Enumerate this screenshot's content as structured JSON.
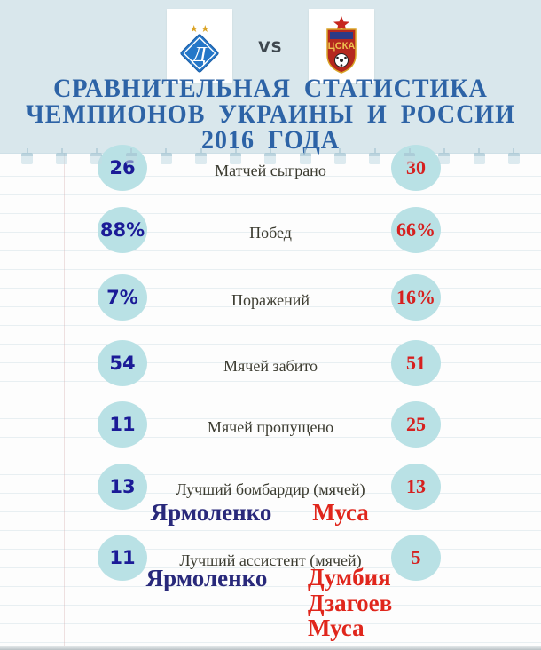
{
  "header": {
    "vs_label": "VS",
    "home_crest": {
      "icon": "dynamo-kyiv-crest-icon",
      "monogram": "Д",
      "stars": "★ ★"
    },
    "away_crest": {
      "icon": "cska-moscow-crest-icon",
      "wordmark": "ЦСКА"
    },
    "title": {
      "line1": "СРАВНИТЕЛЬНАЯ СТАТИСТИКА",
      "line2": "ЧЕМПИОНОВ УКРАИНЫ И РОССИИ",
      "line3": "2016 ГОДА"
    }
  },
  "stats": {
    "rows": [
      {
        "label": "Матчей сыграно",
        "left": "26",
        "right": "30"
      },
      {
        "label": "Побед",
        "left": "88%",
        "right": "66%"
      },
      {
        "label": "Поражений",
        "left": "7%",
        "right": "16%"
      },
      {
        "label": "Мячей забито",
        "left": "54",
        "right": "51"
      },
      {
        "label": "Мячей пропущено",
        "left": "11",
        "right": "25"
      },
      {
        "label": "Лучший бомбардир (мячей)",
        "left": "13",
        "right": "13",
        "left_names": [
          "Ярмоленко"
        ],
        "right_names": [
          "Муса"
        ]
      },
      {
        "label": "Лучший ассистент (мячей)",
        "left": "11",
        "right": "5",
        "left_names": [
          "Ярмоленко"
        ],
        "right_names": [
          "Думбия",
          "Дзагоев",
          "Муса"
        ]
      }
    ]
  },
  "chart_data": {
    "type": "table",
    "title": "Сравнительная статистика чемпионов Украины и России 2016 года",
    "categories": [
      "Матчей сыграно",
      "Побед",
      "Поражений",
      "Мячей забито",
      "Мячей пропущено",
      "Лучший бомбардир (мячей)",
      "Лучший ассистент (мячей)"
    ],
    "series": [
      {
        "name": "Динамо Киев",
        "values": [
          "26",
          "88%",
          "7%",
          "54",
          "11",
          "13",
          "11"
        ]
      },
      {
        "name": "ЦСКА Москва",
        "values": [
          "30",
          "66%",
          "16%",
          "51",
          "25",
          "13",
          "5"
        ]
      }
    ],
    "annotations": {
      "top_scorer_home": "Ярмоленко",
      "top_scorer_away": "Муса",
      "top_assistant_home": "Ярмоленко",
      "top_assistant_away": [
        "Думбия",
        "Дзагоев",
        "Муса"
      ]
    },
    "legend_position": "none",
    "grid": "ruled-paper-background"
  },
  "colors": {
    "header_bg": "#d9e7ec",
    "title_text": "#2d63a6",
    "badge_fill": "#b9e1e5",
    "home_value": "#1b1b97",
    "away_value": "#d6201f",
    "label_text": "#3b3b30"
  }
}
